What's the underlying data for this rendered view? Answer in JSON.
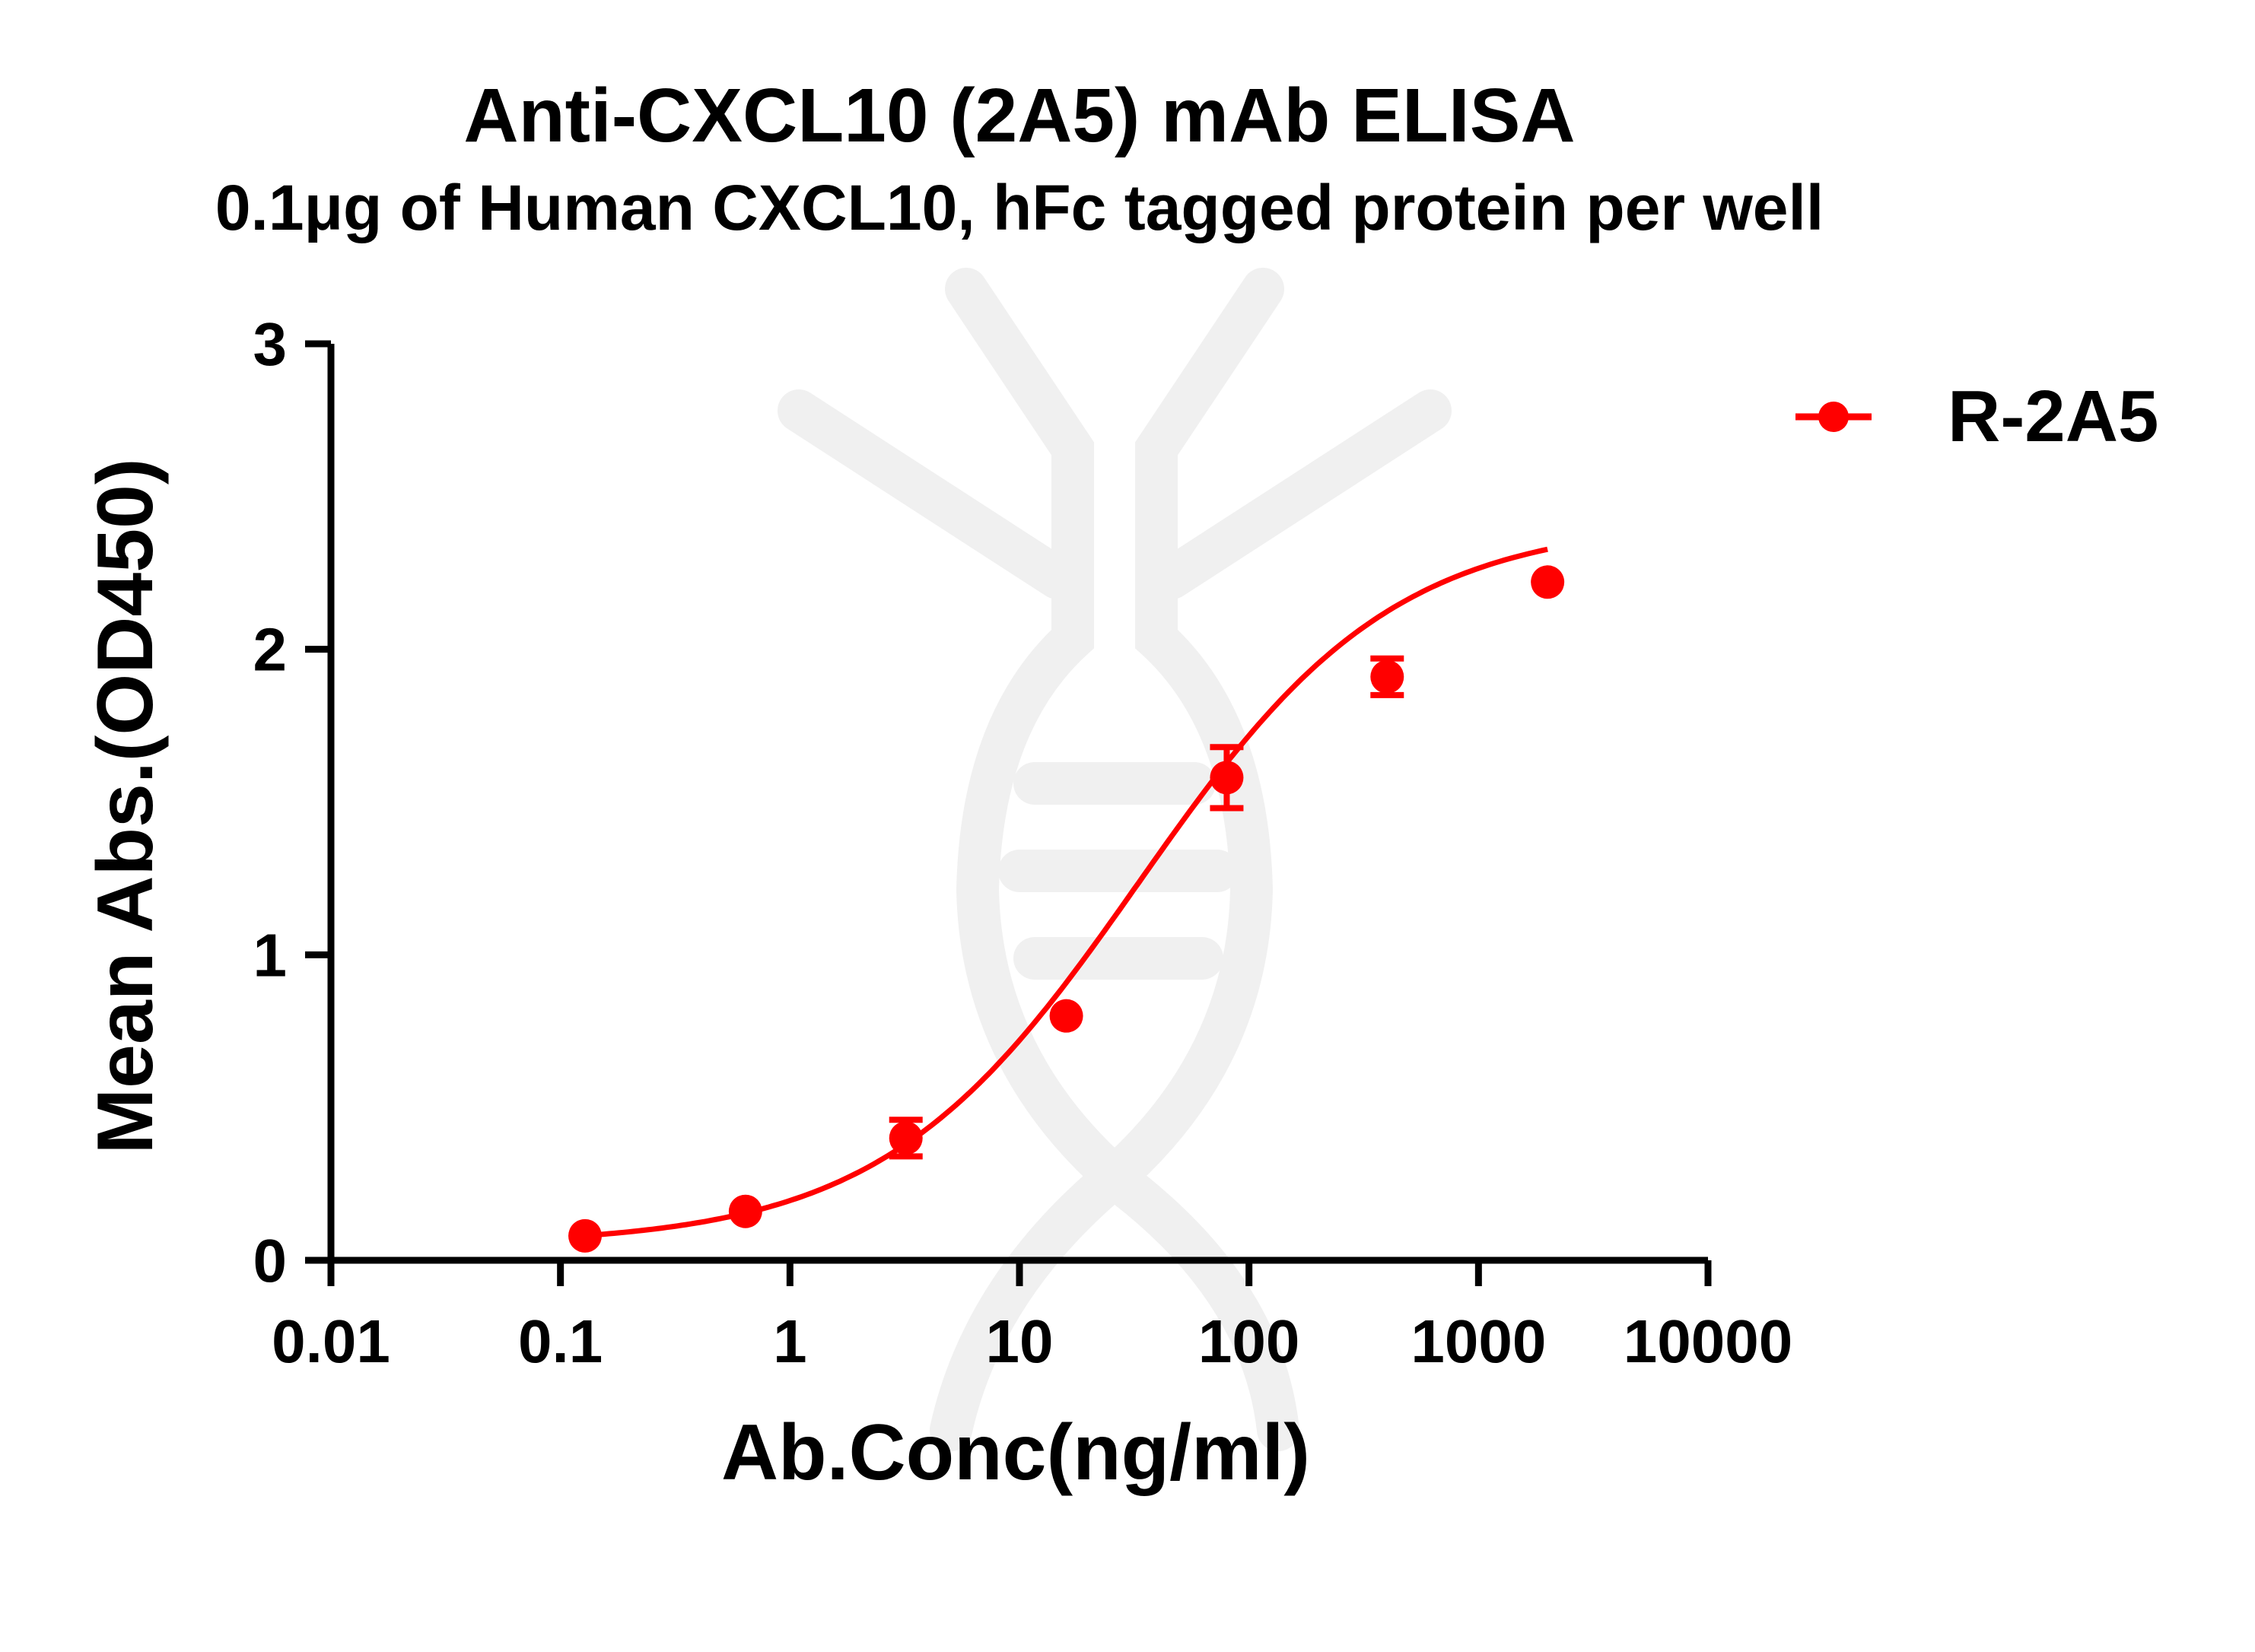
{
  "chart_data": {
    "type": "scatter",
    "title": "Anti-CXCL10 (2A5) mAb ELISA",
    "subtitle": "0.1μg of Human CXCL10, hFc tagged protein per well",
    "xlabel": "Ab.Conc(ng/ml)",
    "ylabel": "Mean Abs.(OD450)",
    "x_scale": "log",
    "xlim": [
      0.01,
      10000
    ],
    "ylim": [
      0,
      3
    ],
    "x_ticks": [
      0.01,
      0.1,
      1,
      10,
      100,
      1000,
      10000
    ],
    "x_tick_labels": [
      "0.01",
      "0.1",
      "1",
      "10",
      "100",
      "1000",
      "10000"
    ],
    "y_ticks": [
      0,
      1,
      2,
      3
    ],
    "y_tick_labels": [
      "0",
      "1",
      "2",
      "3"
    ],
    "grid": false,
    "legend": "top-right",
    "series": [
      {
        "name": "R-2A5",
        "color": "#ff0000",
        "points": [
          {
            "x": 0.128,
            "y": 0.08,
            "err": 0.0
          },
          {
            "x": 0.64,
            "y": 0.16,
            "err": 0.0
          },
          {
            "x": 3.2,
            "y": 0.4,
            "err": 0.06
          },
          {
            "x": 16,
            "y": 0.8,
            "err": 0.0
          },
          {
            "x": 80,
            "y": 1.58,
            "err": 0.1
          },
          {
            "x": 400,
            "y": 1.91,
            "err": 0.06
          },
          {
            "x": 2000,
            "y": 2.22,
            "err": 0.0
          }
        ],
        "fit": {
          "model": "4PL",
          "bottom": 0.05,
          "top": 2.42,
          "ec50": 33,
          "hill": 0.78
        }
      }
    ]
  }
}
